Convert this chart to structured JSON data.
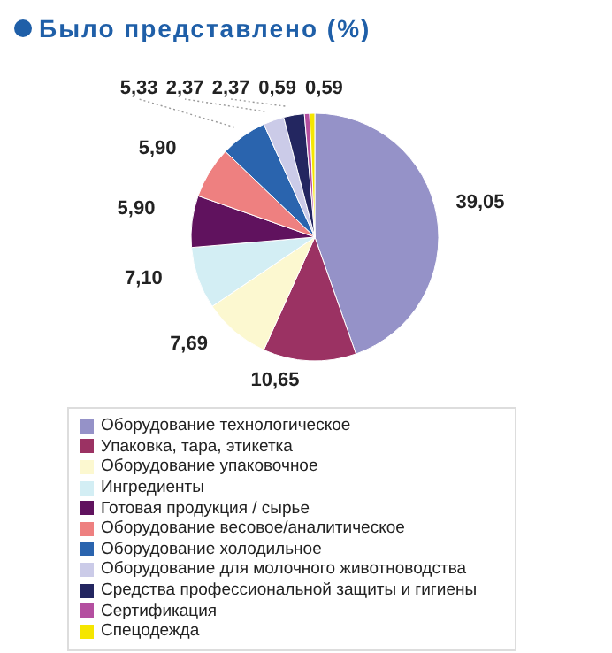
{
  "chart_data": {
    "type": "pie",
    "title": "Было представлено (%)",
    "categories": [
      "Оборудование технологическое",
      "Упаковка, тара, этикетка",
      "Оборудование упаковочное",
      "Ингредиенты",
      "Готовая продукция / сырье",
      "Оборудование весовое/аналитическое",
      "Оборудование холодильное",
      "Оборудование для молочного животноводства",
      "Средства профессиональной защиты и гигиены",
      "Сертификация",
      "Спецодежда"
    ],
    "values": [
      39.05,
      10.65,
      7.69,
      7.1,
      5.9,
      5.9,
      5.33,
      2.37,
      2.37,
      0.59,
      0.59
    ],
    "value_labels": [
      "39,05",
      "10,65",
      "7,69",
      "7,10",
      "5,90",
      "5,90",
      "5,33",
      "2,37",
      "2,37",
      "0,59",
      "0,59"
    ],
    "colors": [
      "#9592c8",
      "#9b3263",
      "#fcf8d0",
      "#d3eef4",
      "#60125e",
      "#ee8080",
      "#2a64ae",
      "#cbcbe8",
      "#232660",
      "#b44fa0",
      "#f5e600"
    ],
    "legend": "bottom"
  }
}
